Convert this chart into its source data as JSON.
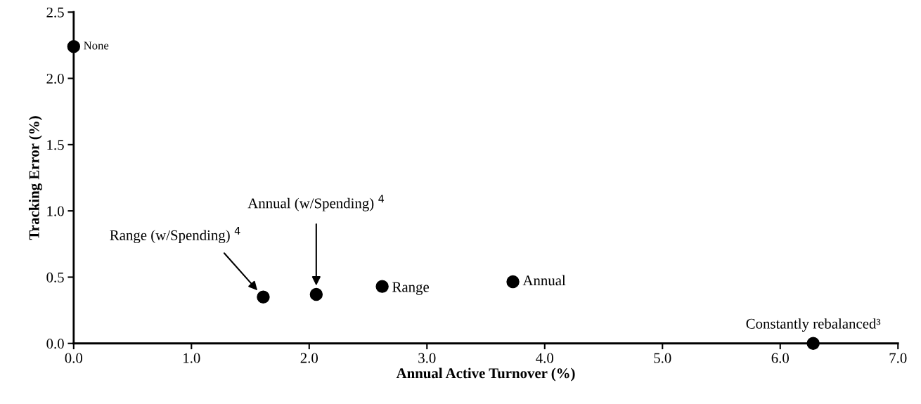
{
  "chart_data": {
    "type": "scatter",
    "xlabel": "Annual Active Turnover (%)",
    "ylabel": "Tracking Error (%)",
    "x": [
      0.0,
      1.61,
      2.06,
      2.62,
      3.73,
      6.28
    ],
    "series": [
      {
        "color": "#000000",
        "values": [
          2.24,
          0.35,
          0.37,
          0.43,
          0.465,
          0.0
        ]
      }
    ],
    "xlim": [
      0,
      7
    ],
    "xticks": [
      {
        "value": 0,
        "label": "0.0"
      },
      {
        "value": 1,
        "label": "1.0"
      },
      {
        "value": 2,
        "label": "2.0"
      },
      {
        "value": 3,
        "label": "3.0"
      },
      {
        "value": 4,
        "label": "4.0"
      },
      {
        "value": 5,
        "label": "5.0"
      },
      {
        "value": 6,
        "label": "6.0"
      },
      {
        "value": 7,
        "label": "7.0"
      }
    ],
    "ylim": [
      0,
      2.5
    ],
    "yticks": [
      {
        "value": 0,
        "label": "0.0"
      },
      {
        "value": 0.5,
        "label": "0.5"
      },
      {
        "value": 1,
        "label": "1.0"
      },
      {
        "value": 1.5,
        "label": "1.5"
      },
      {
        "value": 2,
        "label": "2.0"
      },
      {
        "value": 2.5,
        "label": "2.5"
      }
    ],
    "grid": false,
    "marker": "circle",
    "annotations": [
      {
        "text": "None",
        "x": 0.0,
        "y": 2.24
      },
      "Range (w/Spending) $^{4}$",
      "Annual (w/Spending) $^{4}$",
      {
        "text": "Range",
        "x": 2.62,
        "y": 0.43
      },
      {
        "text": "Annual",
        "x": 3.73,
        "y": 0.465
      },
      {
        "text": "Constantly rebalanced³",
        "x": 6.28,
        "y": 0.0
      }
    ]
  }
}
